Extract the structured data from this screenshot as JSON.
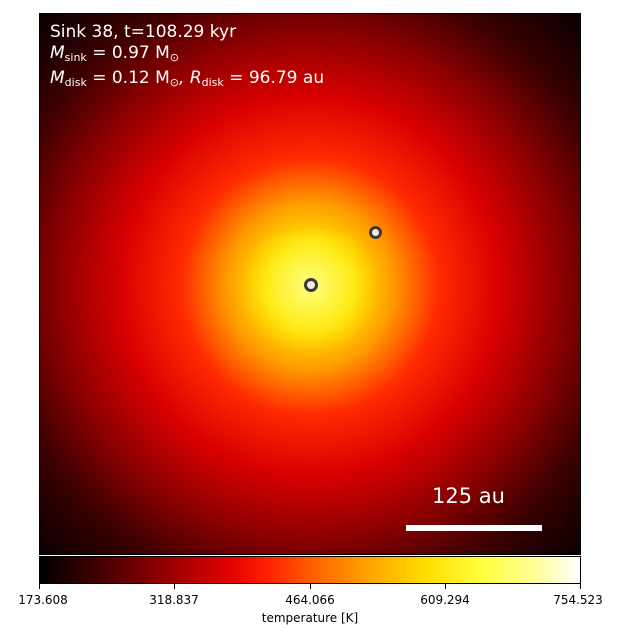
{
  "panel": {
    "line1": "Sink 38, t=108.29 kyr",
    "line2_prefix": "M",
    "line2_sub": "sink",
    "line2_value": " = 0.97 M",
    "line2_sun": "⊙",
    "line3_prefix": "M",
    "line3_sub": "disk",
    "line3_value": " = 0.12 M",
    "line3_sun": "⊙",
    "line3_r": ", R",
    "line3_rsub": "disk",
    "line3_rvalue": " = 96.79 au"
  },
  "scale_bar": {
    "label": "125 au"
  },
  "colorbar": {
    "label": "temperature [K]",
    "ticks": [
      "173.608",
      "318.837",
      "464.066",
      "609.294",
      "754.523"
    ],
    "colormap": "hot",
    "min": 173.608,
    "max": 754.523
  },
  "sinks": [
    {
      "name": "sink-primary"
    },
    {
      "name": "sink-secondary"
    }
  ]
}
